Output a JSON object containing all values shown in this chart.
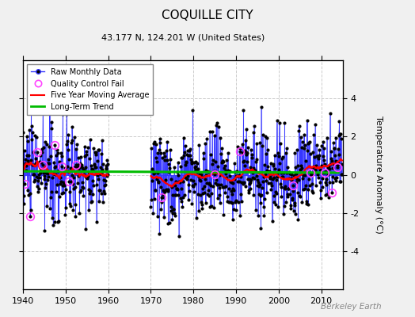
{
  "title": "COQUILLE CITY",
  "subtitle": "43.177 N, 124.201 W (United States)",
  "ylabel": "Temperature Anomaly (°C)",
  "watermark": "Berkeley Earth",
  "year_start": 1940,
  "year_end": 2015,
  "ylim": [
    -6,
    6
  ],
  "yticks": [
    -4,
    -2,
    0,
    2,
    4
  ],
  "ytick_labels_right": [
    "-4",
    "-2",
    "0",
    "2",
    "4"
  ],
  "xticks": [
    1940,
    1950,
    1960,
    1970,
    1980,
    1990,
    2000,
    2010
  ],
  "raw_line_color": "#3333ff",
  "dot_color": "#000000",
  "moving_avg_color": "#ff0000",
  "trend_color": "#00bb00",
  "qc_fail_color": "#ff44ff",
  "background_color": "#f0f0f0",
  "plot_bg_color": "#ffffff",
  "seed": 42
}
